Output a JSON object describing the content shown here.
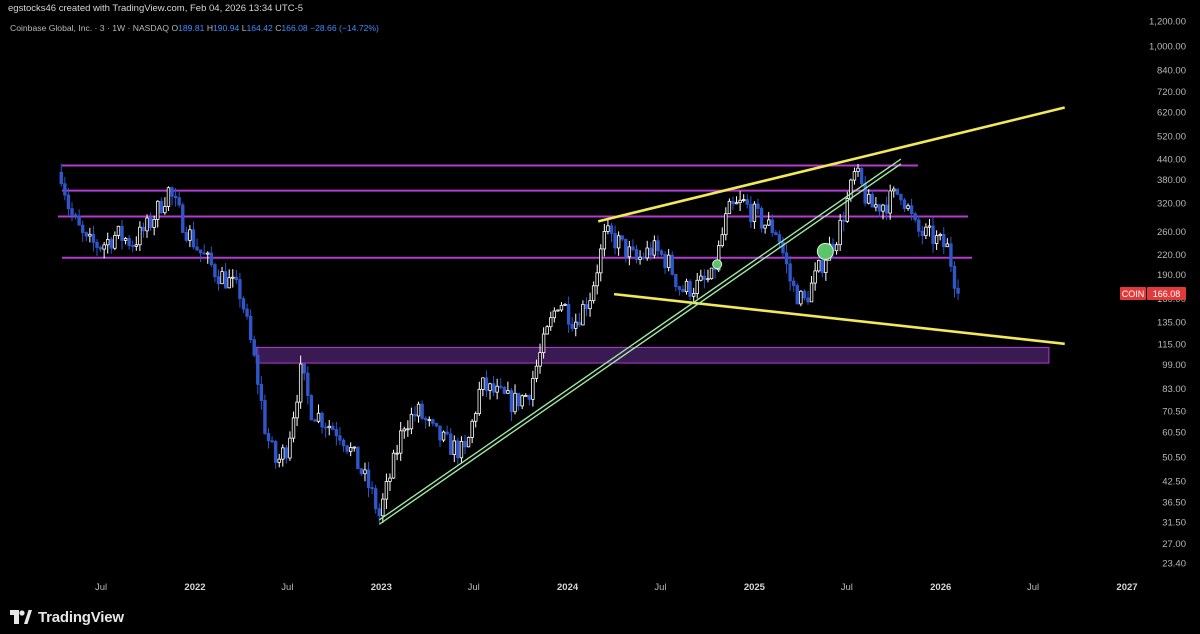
{
  "header": {
    "caption": "egstocks46 created with TradingView.com, Feb 04, 2026 13:34 UTC-5"
  },
  "legend": {
    "symbol_label": "Coinbase Global, Inc. · 3 · 1W · NASDAQ",
    "open_label": "O",
    "open": "189.81",
    "high_label": "H",
    "high": "190.94",
    "low_label": "L",
    "low": "164.42",
    "close_label": "C",
    "close": "166.08",
    "change": "−28.66 (−14.72%)"
  },
  "price_badge": {
    "ticker": "COIN",
    "price": "166.08"
  },
  "footer": {
    "brand": "TradingView"
  },
  "colors": {
    "candle_up": "#ffffff",
    "candle_down": "#2f57c9",
    "level_line": "#b43ad1",
    "zone_fill": "#3a1a52",
    "trend_yellow": "#f1e85a",
    "trend_green": "#9ee6a0",
    "badge": "#e23a3a"
  },
  "chart_data": {
    "type": "candlestick",
    "scale": "log",
    "y_ticks": [
      "1,200.00",
      "1,000.00",
      "840.00",
      "720.00",
      "620.00",
      "520.00",
      "440.00",
      "380.00",
      "320.00",
      "260.00",
      "220.00",
      "190.00",
      "160.00",
      "135.00",
      "115.00",
      "99.00",
      "83.00",
      "70.50",
      "60.50",
      "50.50",
      "42.50",
      "36.50",
      "31.50",
      "27.00",
      "23.40"
    ],
    "x_ticks": [
      {
        "label": "Jul",
        "year": false,
        "date": "2021-07-01"
      },
      {
        "label": "2022",
        "year": true,
        "date": "2022-01-01"
      },
      {
        "label": "Jul",
        "year": false,
        "date": "2022-07-01"
      },
      {
        "label": "2023",
        "year": true,
        "date": "2023-01-01"
      },
      {
        "label": "Jul",
        "year": false,
        "date": "2023-07-01"
      },
      {
        "label": "2024",
        "year": true,
        "date": "2024-01-01"
      },
      {
        "label": "Jul",
        "year": false,
        "date": "2024-07-01"
      },
      {
        "label": "2025",
        "year": true,
        "date": "2025-01-01"
      },
      {
        "label": "Jul",
        "year": false,
        "date": "2025-07-01"
      },
      {
        "label": "2026",
        "year": true,
        "date": "2026-01-01"
      },
      {
        "label": "Jul",
        "year": false,
        "date": "2026-07-01"
      },
      {
        "label": "2027",
        "year": true,
        "date": "2027-01-01"
      }
    ],
    "path": [
      [
        "2021-04-14",
        400
      ],
      [
        "2021-05-01",
        300
      ],
      [
        "2021-06-01",
        240
      ],
      [
        "2021-07-01",
        235
      ],
      [
        "2021-08-01",
        255
      ],
      [
        "2021-09-01",
        240
      ],
      [
        "2021-10-01",
        270
      ],
      [
        "2021-11-10",
        350
      ],
      [
        "2021-12-15",
        265
      ],
      [
        "2022-01-10",
        225
      ],
      [
        "2022-02-10",
        195
      ],
      [
        "2022-03-10",
        180
      ],
      [
        "2022-04-01",
        165
      ],
      [
        "2022-05-01",
        95
      ],
      [
        "2022-05-20",
        60
      ],
      [
        "2022-06-10",
        48
      ],
      [
        "2022-07-01",
        55
      ],
      [
        "2022-07-28",
        95
      ],
      [
        "2022-08-15",
        72
      ],
      [
        "2022-09-15",
        65
      ],
      [
        "2022-10-15",
        60
      ],
      [
        "2022-11-10",
        50
      ],
      [
        "2022-12-10",
        40
      ],
      [
        "2022-12-28",
        33
      ],
      [
        "2023-01-20",
        45
      ],
      [
        "2023-02-15",
        65
      ],
      [
        "2023-03-15",
        70
      ],
      [
        "2023-04-15",
        60
      ],
      [
        "2023-05-15",
        55
      ],
      [
        "2023-06-15",
        52
      ],
      [
        "2023-07-15",
        85
      ],
      [
        "2023-08-15",
        80
      ],
      [
        "2023-09-15",
        75
      ],
      [
        "2023-10-15",
        80
      ],
      [
        "2023-11-15",
        115
      ],
      [
        "2023-12-15",
        160
      ],
      [
        "2024-01-15",
        135
      ],
      [
        "2024-02-15",
        165
      ],
      [
        "2024-03-15",
        255
      ],
      [
        "2024-04-10",
        240
      ],
      [
        "2024-05-15",
        210
      ],
      [
        "2024-06-15",
        230
      ],
      [
        "2024-07-15",
        210
      ],
      [
        "2024-08-10",
        170
      ],
      [
        "2024-09-10",
        175
      ],
      [
        "2024-10-10",
        185
      ],
      [
        "2024-11-10",
        300
      ],
      [
        "2024-12-10",
        320
      ],
      [
        "2025-01-15",
        280
      ],
      [
        "2025-02-15",
        260
      ],
      [
        "2025-03-15",
        175
      ],
      [
        "2025-04-08",
        155
      ],
      [
        "2025-05-15",
        210
      ],
      [
        "2025-06-15",
        260
      ],
      [
        "2025-07-18",
        400
      ],
      [
        "2025-08-15",
        310
      ],
      [
        "2025-09-15",
        320
      ],
      [
        "2025-10-15",
        350
      ],
      [
        "2025-11-15",
        260
      ],
      [
        "2025-12-15",
        250
      ],
      [
        "2026-01-15",
        230
      ],
      [
        "2026-02-04",
        166
      ]
    ],
    "price_levels": [
      420,
      350,
      290,
      215
    ],
    "zones": [
      {
        "low": 100,
        "high": 112,
        "x_start": "2022-05-01",
        "x_end": "2026-08-01"
      }
    ],
    "trendlines": [
      {
        "color": "yellow",
        "points": [
          [
            "2024-03-01",
            280
          ],
          [
            "2026-09-01",
            640
          ]
        ]
      },
      {
        "color": "yellow",
        "points": [
          [
            "2024-04-01",
            165
          ],
          [
            "2026-09-01",
            115
          ]
        ]
      },
      {
        "color": "green",
        "points": [
          [
            "2022-12-28",
            32
          ],
          [
            "2025-10-15",
            440
          ]
        ]
      },
      {
        "color": "green",
        "points": [
          [
            "2022-12-28",
            31
          ],
          [
            "2025-10-15",
            425
          ]
        ]
      }
    ],
    "markers": [
      {
        "date": "2024-10-20",
        "price": 205,
        "size": "small"
      },
      {
        "date": "2025-05-20",
        "price": 225,
        "size": "large"
      }
    ]
  }
}
